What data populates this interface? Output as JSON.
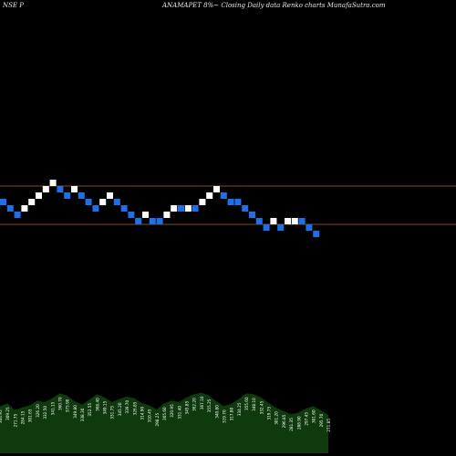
{
  "header": {
    "left": "NSE P",
    "right": "ANAMAPET 8%~  Closing Daily data  Renko  charts MunafaSutra.com"
  },
  "colors": {
    "background": "#000000",
    "up_brick": "#ffffff",
    "down_brick": "#1f6fe8",
    "hline": "#b5651d",
    "volume_fill": "#0e3a0e",
    "volume_label": "#ffffff"
  },
  "chart_data": {
    "type": "renko",
    "bricks": [
      {
        "dir": "down",
        "level": 0
      },
      {
        "dir": "down",
        "level": -1
      },
      {
        "dir": "down",
        "level": -2
      },
      {
        "dir": "up",
        "level": -1
      },
      {
        "dir": "up",
        "level": 0
      },
      {
        "dir": "up",
        "level": 1
      },
      {
        "dir": "up",
        "level": 2
      },
      {
        "dir": "up",
        "level": 3
      },
      {
        "dir": "down",
        "level": 2
      },
      {
        "dir": "down",
        "level": 1
      },
      {
        "dir": "up",
        "level": 2
      },
      {
        "dir": "down",
        "level": 1
      },
      {
        "dir": "down",
        "level": 0
      },
      {
        "dir": "down",
        "level": -1
      },
      {
        "dir": "up",
        "level": 0
      },
      {
        "dir": "up",
        "level": 1
      },
      {
        "dir": "down",
        "level": 0
      },
      {
        "dir": "down",
        "level": -1
      },
      {
        "dir": "down",
        "level": -2
      },
      {
        "dir": "down",
        "level": -3
      },
      {
        "dir": "up",
        "level": -2
      },
      {
        "dir": "down",
        "level": -3
      },
      {
        "dir": "down",
        "level": -3
      },
      {
        "dir": "up",
        "level": -2
      },
      {
        "dir": "up",
        "level": -1
      },
      {
        "dir": "down",
        "level": -1
      },
      {
        "dir": "up",
        "level": -1
      },
      {
        "dir": "down",
        "level": -1
      },
      {
        "dir": "up",
        "level": 0
      },
      {
        "dir": "up",
        "level": 1
      },
      {
        "dir": "up",
        "level": 2
      },
      {
        "dir": "down",
        "level": 1
      },
      {
        "dir": "down",
        "level": 0
      },
      {
        "dir": "down",
        "level": 0
      },
      {
        "dir": "down",
        "level": -1
      },
      {
        "dir": "down",
        "level": -2
      },
      {
        "dir": "down",
        "level": -3
      },
      {
        "dir": "down",
        "level": -4
      },
      {
        "dir": "up",
        "level": -3
      },
      {
        "dir": "down",
        "level": -4
      },
      {
        "dir": "up",
        "level": -3
      },
      {
        "dir": "up",
        "level": -3
      },
      {
        "dir": "down",
        "level": -3
      },
      {
        "dir": "down",
        "level": -4
      },
      {
        "dir": "down",
        "level": -5
      }
    ],
    "hlines": [
      2.5,
      -3.5
    ],
    "volume": {
      "values": [
        118,
        125,
        108,
        115,
        120,
        132,
        128,
        138,
        150,
        145,
        130,
        122,
        135,
        148,
        140,
        128,
        136,
        142,
        138,
        126,
        120,
        110,
        125,
        132,
        128,
        140,
        148,
        152,
        145,
        130,
        118,
        124,
        136,
        150,
        148,
        140,
        126,
        114,
        106,
        98,
        102,
        112,
        118,
        108,
        96
      ],
      "labels": [
        "344.95",
        "309.25",
        "271.75",
        "284.15",
        "301.65",
        "326.20",
        "332.50",
        "341.15",
        "360.70",
        "375.90",
        "349.80",
        "338.30",
        "352.55",
        "368.40",
        "349.15",
        "331.75",
        "345.20",
        "339.70",
        "326.85",
        "314.90",
        "310.45",
        "298.25",
        "305.60",
        "320.95",
        "331.40",
        "345.85",
        "362.20",
        "367.10",
        "355.25",
        "340.80",
        "319.70",
        "317.80",
        "334.25",
        "355.60",
        "348.10",
        "332.45",
        "319.75",
        "301.20",
        "296.85",
        "281.35",
        "288.90",
        "297.45",
        "301.60",
        "295.70",
        "271.85"
      ]
    }
  }
}
